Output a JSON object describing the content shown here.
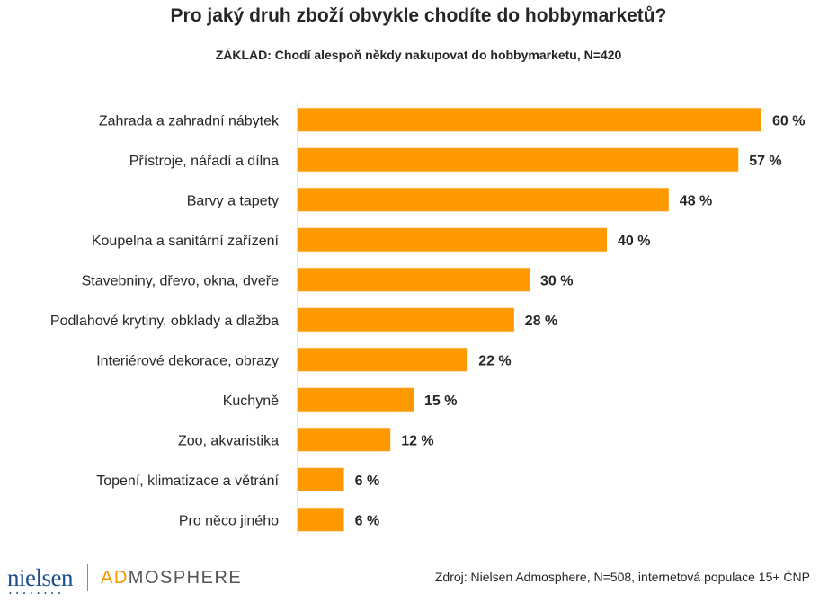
{
  "title": "Pro jaký druh zboží obvykle chodíte do hobbymarketů?",
  "subtitle": "ZÁKLAD: Chodí alespoň někdy nakupovat do hobbymarketu, N=420",
  "brand": {
    "nielsen": "nielsen",
    "admosphere_ad": "AD",
    "admosphere_rest": "MOSPHERE"
  },
  "source": "Zdroj: Nielsen Admosphere, N=508, internetová populace 15+ ČNP",
  "colors": {
    "bar": "#FF9900",
    "text": "#262626",
    "axis": "#BFBFBF"
  },
  "chart_data": {
    "type": "bar",
    "orientation": "horizontal",
    "categories": [
      "Zahrada a zahradní nábytek",
      "Přístroje, nářadí a dílna",
      "Barvy a tapety",
      "Koupelna a sanitární zařízení",
      "Stavebniny, dřevo, okna, dveře",
      "Podlahové krytiny, obklady a dlažba",
      "Interiérové dekorace, obrazy",
      "Kuchyně",
      "Zoo, akvaristika",
      "Topení, klimatizace a větrání",
      "Pro něco jiného"
    ],
    "values": [
      60,
      57,
      48,
      40,
      30,
      28,
      22,
      15,
      12,
      6,
      6
    ],
    "value_labels": [
      "60 %",
      "57 %",
      "48 %",
      "40 %",
      "30 %",
      "28 %",
      "22 %",
      "15 %",
      "12 %",
      "6 %",
      "6 %"
    ],
    "unit": "%",
    "xlim": [
      0,
      60
    ],
    "grid": false,
    "legend": "none"
  }
}
